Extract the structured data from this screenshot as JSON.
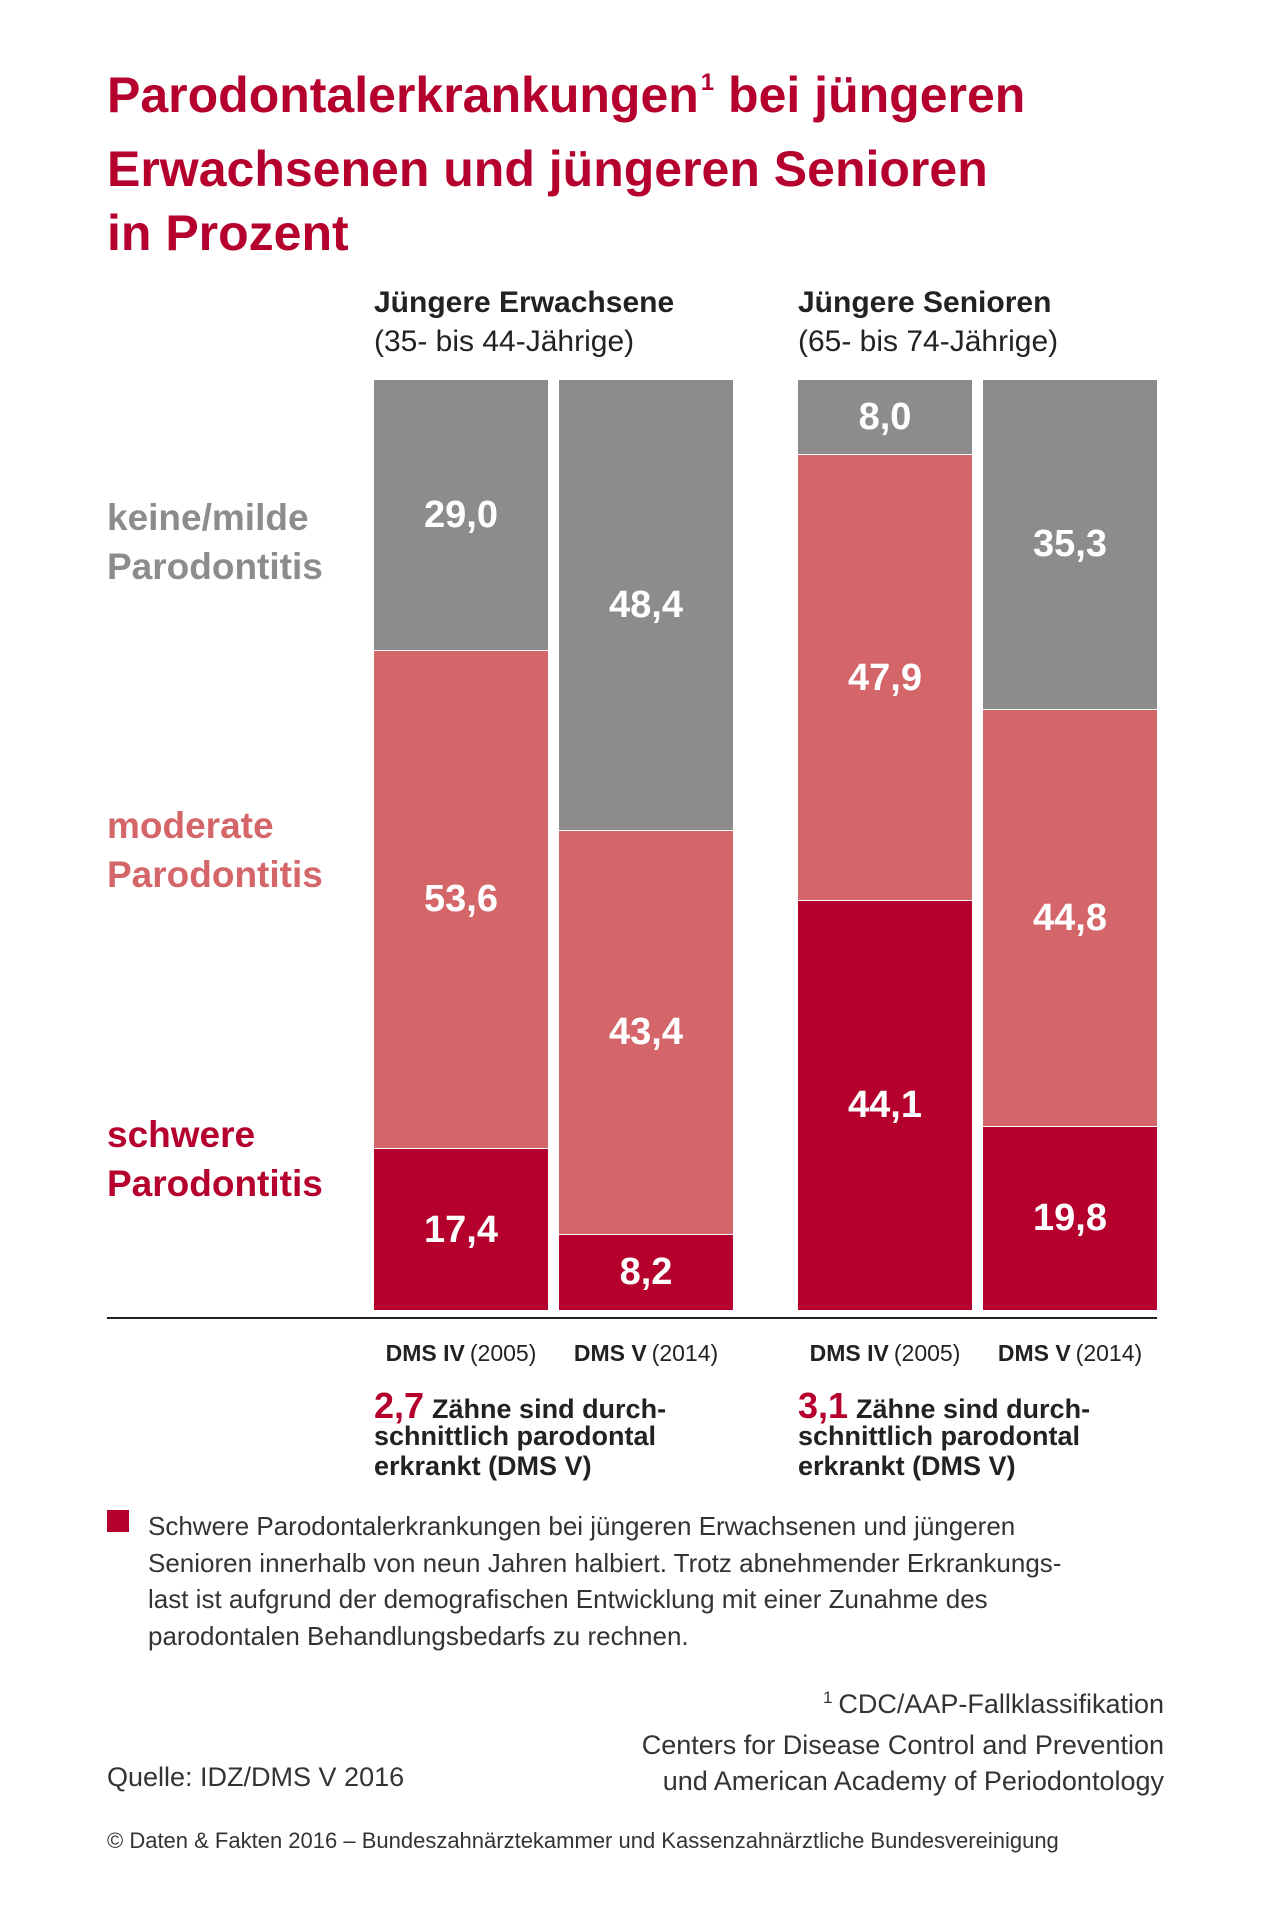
{
  "colors": {
    "accent": "#b5002e",
    "gray": "#8c8c8c",
    "pink": "#d4666a",
    "text": "#2b2b2b"
  },
  "chart_data": {
    "type": "bar",
    "stacked": true,
    "title": {
      "line1": "Parodontalerkrankungen",
      "sup": "1",
      "line1_end": " bei jüngeren",
      "line2": "Erwachsenen und jüngeren Senioren",
      "line3": "in Prozent"
    },
    "ylim": [
      0,
      100
    ],
    "grid": false,
    "legend": "left",
    "groups": [
      {
        "title": "Jüngere Erwachsene",
        "subtitle": "(35- bis 44-Jährige)"
      },
      {
        "title": "Jüngere Senioren",
        "subtitle": "(65- bis 74-Jährige)"
      }
    ],
    "categories": [
      {
        "group": 0,
        "study": "DMS IV",
        "year": "(2005)"
      },
      {
        "group": 0,
        "study": "DMS V",
        "year": "(2014)"
      },
      {
        "group": 1,
        "study": "DMS IV",
        "year": "(2005)"
      },
      {
        "group": 1,
        "study": "DMS V",
        "year": "(2014)"
      }
    ],
    "series": [
      {
        "name_lines": [
          "keine/milde",
          "Parodontitis"
        ],
        "color": "#8c8c8c",
        "values": [
          29.0,
          48.4,
          8.0,
          35.3
        ],
        "labels": [
          "29,0",
          "48,4",
          "8,0",
          "35,3"
        ]
      },
      {
        "name_lines": [
          "moderate",
          "Parodontitis"
        ],
        "color": "#d4666a",
        "values": [
          53.6,
          43.4,
          47.9,
          44.8
        ],
        "labels": [
          "53,6",
          "43,4",
          "47,9",
          "44,8"
        ]
      },
      {
        "name_lines": [
          "schwere",
          "Parodontitis"
        ],
        "color": "#b5002e",
        "values": [
          17.4,
          8.2,
          44.1,
          19.8
        ],
        "labels": [
          "17,4",
          "8,2",
          "44,1",
          "19,8"
        ]
      }
    ],
    "annotations": [
      {
        "value": "2,7",
        "lines": [
          "Zähne sind durch-",
          "schnittlich parodontal",
          "erkrankt (DMS V)"
        ]
      },
      {
        "value": "3,1",
        "lines": [
          "Zähne sind durch-",
          "schnittlich parodontal",
          "erkrankt (DMS V)"
        ]
      }
    ]
  },
  "summary": {
    "lines": [
      "Schwere Parodontalerkrankungen bei jüngeren Erwachsenen und jüngeren",
      "Senioren innerhalb von neun Jahren halbiert. Trotz abnehmender Erkrankungs-",
      "last ist aufgrund der demografischen Entwicklung mit einer Zunahme des",
      "parodontalen Behandlungsbedarfs zu rechnen."
    ]
  },
  "footnote": {
    "mark": "1",
    "lines": [
      "CDC/AAP-Fallklassifikation",
      "Centers for Disease Control and Prevention",
      "und American Academy of Periodontology"
    ]
  },
  "source": "Quelle: IDZ/DMS V 2016",
  "copyright": "© Daten & Fakten 2016 – Bundeszahnärztekammer und Kassenzahnärztliche Bundesvereinigung"
}
